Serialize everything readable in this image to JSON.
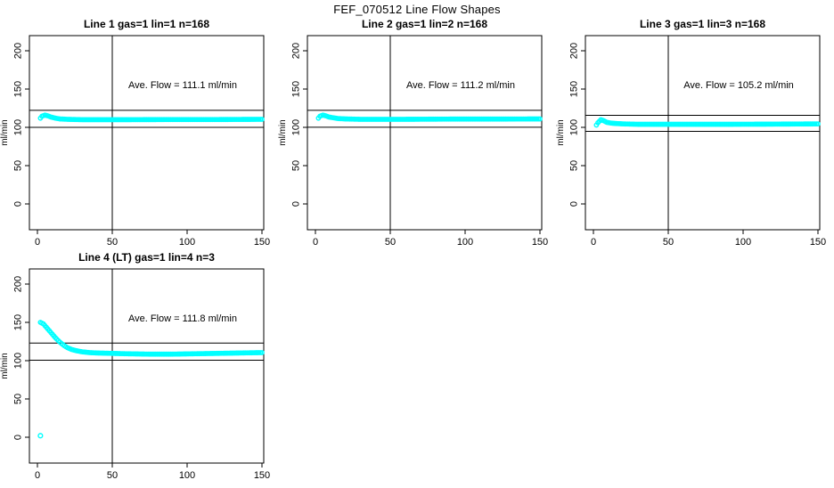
{
  "page": {
    "title": "FEF_070512  Line Flow Shapes"
  },
  "colors": {
    "marker": "#00FFFF",
    "axis": "#000000",
    "background": "#FFFFFF"
  },
  "axes": {
    "xticks": [
      0,
      50,
      100,
      150
    ],
    "yticks": [
      0,
      50,
      100,
      150,
      200
    ],
    "ylabel": "ml/min",
    "xlim": [
      -5,
      151
    ],
    "ylim": [
      -34,
      220
    ],
    "grid": false
  },
  "chart_data": [
    {
      "type": "scatter",
      "title": "Line 1 gas=1 lin=1 n=168",
      "annotation": "Ave. Flow =  111.1  ml/min",
      "avg_flow": 111.1,
      "n": 168,
      "vline": 50,
      "hlines": [
        122.2,
        100.0
      ],
      "marker_step": 1,
      "keypoints": [
        [
          2,
          112
        ],
        [
          3,
          114.5
        ],
        [
          5,
          116
        ],
        [
          7,
          115
        ],
        [
          9,
          113.5
        ],
        [
          12,
          112
        ],
        [
          15,
          111
        ],
        [
          20,
          110.5
        ],
        [
          30,
          110
        ],
        [
          60,
          110
        ],
        [
          90,
          110.2
        ],
        [
          120,
          110.2
        ],
        [
          150,
          110.5
        ]
      ],
      "extra_points": []
    },
    {
      "type": "scatter",
      "title": "Line 2 gas=1 lin=2 n=168",
      "annotation": "Ave. Flow =  111.2  ml/min",
      "avg_flow": 111.2,
      "n": 168,
      "vline": 50,
      "hlines": [
        122.3,
        100.1
      ],
      "marker_step": 1,
      "keypoints": [
        [
          2,
          112
        ],
        [
          3,
          114.5
        ],
        [
          5,
          116
        ],
        [
          7,
          115
        ],
        [
          9,
          113.5
        ],
        [
          12,
          112.5
        ],
        [
          15,
          111.5
        ],
        [
          20,
          111
        ],
        [
          30,
          110.5
        ],
        [
          60,
          110.5
        ],
        [
          90,
          110.8
        ],
        [
          120,
          110.8
        ],
        [
          150,
          111
        ]
      ],
      "extra_points": []
    },
    {
      "type": "scatter",
      "title": "Line 3 gas=1 lin=3 n=168",
      "annotation": "Ave. Flow =  105.2  ml/min",
      "avg_flow": 105.2,
      "n": 168,
      "vline": 50,
      "hlines": [
        115.7,
        94.7
      ],
      "marker_step": 1,
      "keypoints": [
        [
          2,
          103
        ],
        [
          3,
          106
        ],
        [
          5,
          110
        ],
        [
          7,
          108.5
        ],
        [
          9,
          106.5
        ],
        [
          12,
          105.5
        ],
        [
          15,
          105
        ],
        [
          20,
          104.5
        ],
        [
          30,
          104
        ],
        [
          60,
          104
        ],
        [
          90,
          104
        ],
        [
          120,
          104.2
        ],
        [
          150,
          104.5
        ]
      ],
      "extra_points": []
    },
    {
      "type": "scatter",
      "title": "Line 4 (LT) gas=1 lin=4 n=3",
      "annotation": "Ave. Flow =  111.8  ml/min",
      "avg_flow": 111.8,
      "n": 3,
      "vline": 50,
      "hlines": [
        123.0,
        100.6
      ],
      "marker_step": 1,
      "keypoints": [
        [
          2,
          150
        ],
        [
          4,
          148
        ],
        [
          6,
          143.5
        ],
        [
          8,
          139
        ],
        [
          10,
          134.5
        ],
        [
          12,
          130
        ],
        [
          14,
          126
        ],
        [
          16,
          122.5
        ],
        [
          18,
          119.5
        ],
        [
          20,
          117
        ],
        [
          23,
          114.5
        ],
        [
          26,
          113
        ],
        [
          30,
          111.5
        ],
        [
          35,
          110.5
        ],
        [
          40,
          110
        ],
        [
          50,
          109.5
        ],
        [
          60,
          109
        ],
        [
          75,
          108.5
        ],
        [
          90,
          108.5
        ],
        [
          105,
          109
        ],
        [
          120,
          109.5
        ],
        [
          135,
          110
        ],
        [
          150,
          110.5
        ]
      ],
      "extra_points": [
        [
          2,
          2
        ]
      ]
    }
  ]
}
